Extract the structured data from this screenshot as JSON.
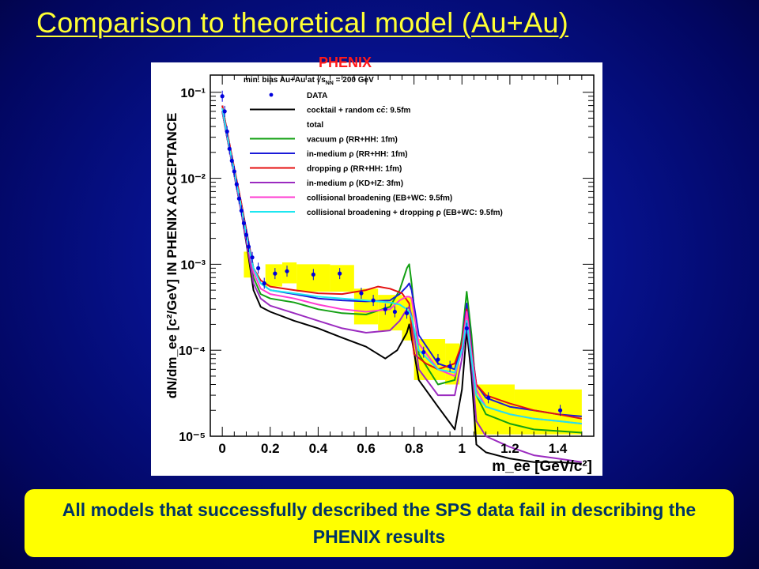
{
  "slide": {
    "title": "Comparison to theoretical model (Au+Au)",
    "conclusion": "All models that successfully described the SPS data fail in describing the PHENIX results"
  },
  "chart_data": {
    "type": "line",
    "banner": "PHENIX",
    "header_prefix": "min. bias Au+Au at",
    "header_suffix": "= 200 GeV",
    "ylabel": "dN/dm_ee [c²/GeV] IN PHENIX ACCEPTANCE",
    "xlabel": "m_ee [GeV/c²]",
    "xlim": [
      -0.05,
      1.55
    ],
    "ylim_log10": [
      -5,
      -0.8
    ],
    "x_ticks": [
      {
        "v": 0,
        "label": "0"
      },
      {
        "v": 0.2,
        "label": "0.2"
      },
      {
        "v": 0.4,
        "label": "0.4"
      },
      {
        "v": 0.6,
        "label": "0.6"
      },
      {
        "v": 0.8,
        "label": "0.8"
      },
      {
        "v": 1.0,
        "label": "1"
      },
      {
        "v": 1.2,
        "label": "1.2"
      },
      {
        "v": 1.4,
        "label": "1.4"
      }
    ],
    "y_ticks": [
      {
        "exp": -1,
        "label": "10⁻¹"
      },
      {
        "exp": -2,
        "label": "10⁻²"
      },
      {
        "exp": -3,
        "label": "10⁻³"
      },
      {
        "exp": -4,
        "label": "10⁻⁴"
      },
      {
        "exp": -5,
        "label": "10⁻⁵"
      }
    ],
    "legend": [
      {
        "label": "DATA",
        "color": "#0000dd",
        "marker": true
      },
      {
        "label": "cocktail + random cc̄: 9.5fm",
        "color": "#000000"
      },
      {
        "label": "total",
        "color": "#000000",
        "text_only": true
      },
      {
        "label": "vacuum ρ (RR+HH: 1fm)",
        "color": "#13a013"
      },
      {
        "label": "in-medium ρ (RR+HH: 1fm)",
        "color": "#1a1ad8"
      },
      {
        "label": "dropping ρ (RR+HH: 1fm)",
        "color": "#e41111"
      },
      {
        "label": "in-medium ρ (KD+IZ: 3fm)",
        "color": "#9b2bc0"
      },
      {
        "label": "collisional broadening (EB+WC: 9.5fm)",
        "color": "#ff3cd2"
      },
      {
        "label": "collisional broadening + dropping ρ (EB+WC: 9.5fm)",
        "color": "#1ee6f0"
      }
    ],
    "data_points": [
      {
        "x": 0.0,
        "y": 0.09
      },
      {
        "x": 0.01,
        "y": 0.06
      },
      {
        "x": 0.02,
        "y": 0.035
      },
      {
        "x": 0.03,
        "y": 0.022
      },
      {
        "x": 0.04,
        "y": 0.016
      },
      {
        "x": 0.05,
        "y": 0.012
      },
      {
        "x": 0.06,
        "y": 0.0085
      },
      {
        "x": 0.07,
        "y": 0.0058
      },
      {
        "x": 0.08,
        "y": 0.0042
      },
      {
        "x": 0.09,
        "y": 0.003
      },
      {
        "x": 0.1,
        "y": 0.0022
      },
      {
        "x": 0.11,
        "y": 0.0016
      },
      {
        "x": 0.125,
        "y": 0.0012
      },
      {
        "x": 0.15,
        "y": 0.0009
      },
      {
        "x": 0.175,
        "y": 0.0006
      },
      {
        "x": 0.22,
        "y": 0.00078
      },
      {
        "x": 0.27,
        "y": 0.00083
      },
      {
        "x": 0.38,
        "y": 0.00076
      },
      {
        "x": 0.49,
        "y": 0.00078
      },
      {
        "x": 0.58,
        "y": 0.00046
      },
      {
        "x": 0.63,
        "y": 0.00038
      },
      {
        "x": 0.68,
        "y": 0.0003
      },
      {
        "x": 0.72,
        "y": 0.00028
      },
      {
        "x": 0.77,
        "y": 0.00027
      },
      {
        "x": 0.84,
        "y": 9.5e-05
      },
      {
        "x": 0.9,
        "y": 7.8e-05
      },
      {
        "x": 0.95,
        "y": 6.5e-05
      },
      {
        "x": 1.02,
        "y": 0.00018
      },
      {
        "x": 1.11,
        "y": 2.8e-05
      },
      {
        "x": 1.41,
        "y": 2e-05
      }
    ],
    "sys_boxes": [
      {
        "x0": 0.09,
        "x1": 0.12,
        "y0": 0.0007,
        "y1": 0.0014
      },
      {
        "x0": 0.18,
        "x1": 0.25,
        "y0": 0.00055,
        "y1": 0.001
      },
      {
        "x0": 0.25,
        "x1": 0.31,
        "y0": 0.0006,
        "y1": 0.00105
      },
      {
        "x0": 0.31,
        "x1": 0.45,
        "y0": 0.00048,
        "y1": 0.001
      },
      {
        "x0": 0.45,
        "x1": 0.55,
        "y0": 0.00048,
        "y1": 0.00098
      },
      {
        "x0": 0.55,
        "x1": 0.65,
        "y0": 0.0002,
        "y1": 0.00052
      },
      {
        "x0": 0.65,
        "x1": 0.75,
        "y0": 0.00017,
        "y1": 0.00044
      },
      {
        "x0": 0.75,
        "x1": 0.8,
        "y0": 0.00013,
        "y1": 0.00042
      },
      {
        "x0": 0.8,
        "x1": 0.93,
        "y0": 4.5e-05,
        "y1": 0.000135
      },
      {
        "x0": 0.93,
        "x1": 0.99,
        "y0": 4e-05,
        "y1": 0.00012
      },
      {
        "x0": 1.05,
        "x1": 1.22,
        "y0": 1.05e-05,
        "y1": 4e-05
      },
      {
        "x0": 1.22,
        "x1": 1.5,
        "y0": 1.05e-05,
        "y1": 3.5e-05
      }
    ],
    "series": [
      {
        "key": "cocktail",
        "color": "#000000",
        "x": [
          0.0,
          0.02,
          0.05,
          0.08,
          0.11,
          0.13,
          0.16,
          0.2,
          0.3,
          0.4,
          0.5,
          0.6,
          0.68,
          0.73,
          0.77,
          0.78,
          0.79,
          0.82,
          0.9,
          0.97,
          1.0,
          1.02,
          1.04,
          1.06,
          1.1,
          1.2,
          1.3,
          1.4,
          1.5
        ],
        "y": [
          0.06,
          0.03,
          0.011,
          0.004,
          0.0012,
          0.0005,
          0.00032,
          0.00028,
          0.00022,
          0.00018,
          0.00014,
          0.00011,
          8e-05,
          0.0001,
          0.00016,
          0.0002,
          0.00014,
          4.5e-05,
          2.2e-05,
          1.2e-05,
          3.5e-05,
          0.00017,
          5e-05,
          8e-06,
          6.5e-06,
          5.5e-06,
          5e-06,
          5e-06,
          4.8e-06
        ]
      },
      {
        "key": "vacuum",
        "color": "#13a013",
        "x": [
          0.0,
          0.02,
          0.05,
          0.08,
          0.11,
          0.13,
          0.16,
          0.2,
          0.3,
          0.4,
          0.5,
          0.6,
          0.7,
          0.74,
          0.77,
          0.78,
          0.79,
          0.82,
          0.9,
          0.97,
          1.0,
          1.02,
          1.04,
          1.06,
          1.1,
          1.2,
          1.3,
          1.4,
          1.5
        ],
        "y": [
          0.06,
          0.03,
          0.011,
          0.004,
          0.0014,
          0.0007,
          0.00045,
          0.0004,
          0.00036,
          0.0003,
          0.00027,
          0.00026,
          0.00032,
          0.0005,
          0.0009,
          0.001,
          0.0006,
          9e-05,
          4e-05,
          4.5e-05,
          0.00014,
          0.00048,
          0.00015,
          3e-05,
          1.8e-05,
          1.4e-05,
          1.2e-05,
          1.15e-05,
          1.1e-05
        ]
      },
      {
        "key": "inmedium",
        "color": "#1a1ad8",
        "x": [
          0.0,
          0.02,
          0.05,
          0.08,
          0.11,
          0.13,
          0.16,
          0.2,
          0.3,
          0.4,
          0.5,
          0.6,
          0.7,
          0.74,
          0.77,
          0.78,
          0.79,
          0.82,
          0.9,
          0.97,
          1.0,
          1.02,
          1.04,
          1.06,
          1.1,
          1.2,
          1.3,
          1.4,
          1.5
        ],
        "y": [
          0.07,
          0.035,
          0.013,
          0.005,
          0.0018,
          0.0009,
          0.0006,
          0.0005,
          0.00045,
          0.0004,
          0.00038,
          0.00037,
          0.00038,
          0.00045,
          0.00055,
          0.0006,
          0.0005,
          0.00015,
          7e-05,
          6e-05,
          0.00012,
          0.00035,
          0.00011,
          4e-05,
          2.8e-05,
          2.2e-05,
          2e-05,
          1.8e-05,
          1.7e-05
        ]
      },
      {
        "key": "dropping",
        "color": "#e41111",
        "x": [
          0.0,
          0.02,
          0.05,
          0.08,
          0.11,
          0.13,
          0.16,
          0.2,
          0.3,
          0.4,
          0.5,
          0.6,
          0.65,
          0.7,
          0.75,
          0.78,
          0.8,
          0.85,
          0.9,
          0.97,
          1.0,
          1.02,
          1.04,
          1.06,
          1.1,
          1.2,
          1.3,
          1.4,
          1.5
        ],
        "y": [
          0.07,
          0.035,
          0.013,
          0.005,
          0.0017,
          0.0009,
          0.00065,
          0.00055,
          0.0005,
          0.00046,
          0.00045,
          0.0005,
          0.00055,
          0.00052,
          0.00046,
          0.00035,
          9e-05,
          7e-05,
          6e-05,
          7e-05,
          0.00012,
          0.0003,
          0.0001,
          4e-05,
          3e-05,
          2.4e-05,
          2e-05,
          1.8e-05,
          1.6e-05
        ]
      },
      {
        "key": "kdiz",
        "color": "#9b2bc0",
        "x": [
          0.0,
          0.02,
          0.05,
          0.08,
          0.11,
          0.13,
          0.16,
          0.2,
          0.3,
          0.4,
          0.5,
          0.6,
          0.7,
          0.74,
          0.77,
          0.78,
          0.79,
          0.82,
          0.9,
          0.97,
          1.0,
          1.02,
          1.04,
          1.06,
          1.1,
          1.2,
          1.3,
          1.4,
          1.5
        ],
        "y": [
          0.06,
          0.03,
          0.011,
          0.004,
          0.0013,
          0.0006,
          0.0004,
          0.00033,
          0.00027,
          0.00022,
          0.00018,
          0.00016,
          0.00017,
          0.00022,
          0.0003,
          0.00032,
          0.00025,
          6e-05,
          3e-05,
          3e-05,
          8e-05,
          0.0002,
          7e-05,
          1.5e-05,
          1e-05,
          7.5e-06,
          6e-06,
          5.5e-06,
          5e-06
        ]
      },
      {
        "key": "collisional",
        "color": "#ff3cd2",
        "x": [
          0.0,
          0.02,
          0.05,
          0.08,
          0.11,
          0.13,
          0.16,
          0.2,
          0.3,
          0.4,
          0.5,
          0.6,
          0.7,
          0.74,
          0.77,
          0.78,
          0.79,
          0.82,
          0.9,
          0.97,
          1.0,
          1.02,
          1.04,
          1.06,
          1.1,
          1.2,
          1.3,
          1.4,
          1.5
        ],
        "y": [
          0.065,
          0.032,
          0.012,
          0.0045,
          0.0015,
          0.0008,
          0.00052,
          0.00045,
          0.0004,
          0.00034,
          0.0003,
          0.00028,
          0.0003,
          0.00038,
          0.00042,
          0.00042,
          0.0004,
          0.00012,
          6e-05,
          5e-05,
          0.0001,
          0.00028,
          9e-05,
          3.5e-05,
          2.2e-05,
          1.8e-05,
          1.6e-05,
          1.5e-05,
          1.4e-05
        ]
      },
      {
        "key": "collisional_dropping",
        "color": "#1ee6f0",
        "x": [
          0.0,
          0.02,
          0.05,
          0.08,
          0.11,
          0.13,
          0.16,
          0.2,
          0.3,
          0.4,
          0.5,
          0.6,
          0.7,
          0.74,
          0.77,
          0.78,
          0.79,
          0.82,
          0.9,
          0.97,
          1.0,
          1.02,
          1.04,
          1.06,
          1.1,
          1.2,
          1.3,
          1.4,
          1.5
        ],
        "y": [
          0.065,
          0.032,
          0.012,
          0.0045,
          0.0016,
          0.0009,
          0.0006,
          0.0005,
          0.00046,
          0.00042,
          0.0004,
          0.00038,
          0.00036,
          0.00034,
          0.0003,
          0.00028,
          0.00024,
          0.0001,
          6e-05,
          5.5e-05,
          0.0001,
          0.00022,
          8e-05,
          3e-05,
          2.2e-05,
          1.8e-05,
          1.6e-05,
          1.5e-05,
          1.4e-05
        ]
      }
    ]
  }
}
